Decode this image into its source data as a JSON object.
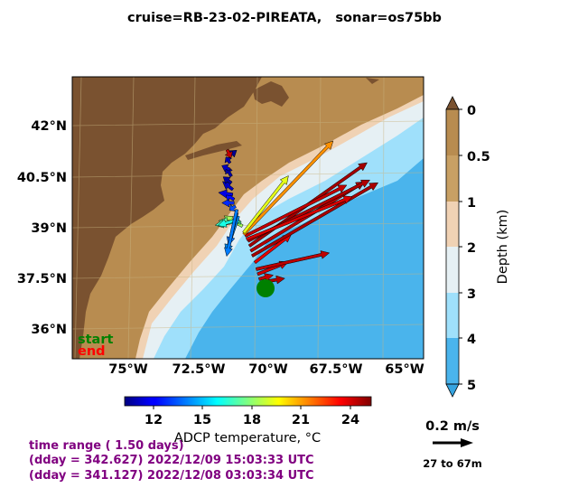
{
  "title": "cruise=RB-23-02-PIREATA,   sonar=os75bb",
  "map": {
    "lon_ticks": [
      "75°W",
      "72.5°W",
      "70°W",
      "67.5°W",
      "65°W"
    ],
    "lat_ticks": [
      "42°N",
      "40.5°N",
      "39°N",
      "37.5°N",
      "36°N"
    ],
    "legend": {
      "start": "start",
      "end": "end",
      "start_color": "#008000",
      "end_color": "#ff0000"
    },
    "colors": {
      "land": "#7a5230",
      "shelf": "#b88c50",
      "slope": "#f0d2b4",
      "deep1": "#e6f0f4",
      "deep2": "#9fe0fb",
      "deep3": "#4ab4ec",
      "deep4": "#36a4e0"
    }
  },
  "depth_colorbar": {
    "label": "Depth (km)",
    "ticks": [
      "0",
      "0.5",
      "1",
      "2",
      "3",
      "4",
      "5"
    ],
    "colors": [
      "#b88c50",
      "#c8a064",
      "#f0d2b4",
      "#e6f0f4",
      "#9fe0fb",
      "#4ab4ec"
    ]
  },
  "temp_colorbar": {
    "label": "ADCP temperature, °C",
    "ticks": [
      "12",
      "15",
      "18",
      "21",
      "24"
    ],
    "min": 10.5,
    "max": 25.5,
    "colormap": "jet"
  },
  "info": {
    "line1": "time range ( 1.50 days)",
    "line2": "(dday = 342.627) 2022/12/09 15:03:33 UTC",
    "line3": "(dday = 341.127) 2022/12/08 03:03:34 UTC"
  },
  "scale": {
    "label": "0.2 m/s",
    "depth_range": "27 to 67m"
  },
  "chart_data": {
    "type": "vector-map",
    "x_range_lon": [
      -77,
      -64.3
    ],
    "y_range_lat": [
      34.9,
      43.4
    ],
    "vectors": [
      {
        "lon": -70.2,
        "lat": 37.2,
        "u": 0.12,
        "v": 0.02,
        "temp": 24.8
      },
      {
        "lon": -70.25,
        "lat": 37.3,
        "u": 0.07,
        "v": 0.02,
        "temp": 24.5
      },
      {
        "lon": -70.3,
        "lat": 37.45,
        "u": 0.15,
        "v": 0.06,
        "temp": 24.3
      },
      {
        "lon": -70.35,
        "lat": 37.6,
        "u": 0.36,
        "v": 0.08,
        "temp": 24.6
      },
      {
        "lon": -70.4,
        "lat": 37.8,
        "u": 0.18,
        "v": 0.14,
        "temp": 24.0
      },
      {
        "lon": -70.5,
        "lat": 38.0,
        "u": 0.62,
        "v": 0.36,
        "temp": 24.9
      },
      {
        "lon": -70.55,
        "lat": 38.15,
        "u": 0.56,
        "v": 0.34,
        "temp": 24.7
      },
      {
        "lon": -70.6,
        "lat": 38.3,
        "u": 0.58,
        "v": 0.41,
        "temp": 25.0
      },
      {
        "lon": -70.65,
        "lat": 38.45,
        "u": 0.6,
        "v": 0.3,
        "temp": 24.8
      },
      {
        "lon": -70.7,
        "lat": 38.5,
        "u": 0.52,
        "v": 0.21,
        "temp": 24.2
      },
      {
        "lon": -70.75,
        "lat": 38.6,
        "u": 0.5,
        "v": 0.25,
        "temp": 24.5
      },
      {
        "lon": -70.8,
        "lat": 38.65,
        "u": 0.44,
        "v": 0.46,
        "temp": 21.5
      },
      {
        "lon": -70.8,
        "lat": 38.7,
        "u": 0.22,
        "v": 0.28,
        "temp": 19.5
      },
      {
        "lon": -70.85,
        "lat": 38.9,
        "u": -0.09,
        "v": 0.05,
        "temp": 18.5
      },
      {
        "lon": -70.9,
        "lat": 39.0,
        "u": -0.11,
        "v": 0.01,
        "temp": 17.5
      },
      {
        "lon": -70.95,
        "lat": 39.05,
        "u": -0.12,
        "v": -0.02,
        "temp": 17.0
      },
      {
        "lon": -71.0,
        "lat": 39.1,
        "u": -0.1,
        "v": -0.03,
        "temp": 16.5
      },
      {
        "lon": -71.0,
        "lat": 39.2,
        "u": -0.06,
        "v": -0.18,
        "temp": 14.5
      },
      {
        "lon": -71.05,
        "lat": 39.3,
        "u": -0.04,
        "v": -0.16,
        "temp": 14.0
      },
      {
        "lon": -71.05,
        "lat": 39.4,
        "u": -0.05,
        "v": -0.23,
        "temp": 14.2
      },
      {
        "lon": -71.1,
        "lat": 39.5,
        "u": -0.03,
        "v": -0.02,
        "temp": 13.5
      },
      {
        "lon": -71.15,
        "lat": 39.6,
        "u": -0.06,
        "v": 0.0,
        "temp": 13.0
      },
      {
        "lon": -71.15,
        "lat": 39.7,
        "u": -0.05,
        "v": 0.03,
        "temp": 12.5
      },
      {
        "lon": -71.2,
        "lat": 39.85,
        "u": -0.07,
        "v": 0.01,
        "temp": 12.0
      },
      {
        "lon": -71.2,
        "lat": 40.0,
        "u": -0.05,
        "v": 0.04,
        "temp": 11.5
      },
      {
        "lon": -71.25,
        "lat": 40.2,
        "u": -0.04,
        "v": 0.03,
        "temp": 11.0
      },
      {
        "lon": -71.25,
        "lat": 40.4,
        "u": -0.03,
        "v": 0.05,
        "temp": 11.0
      },
      {
        "lon": -71.3,
        "lat": 40.6,
        "u": -0.04,
        "v": 0.02,
        "temp": 11.5
      },
      {
        "lon": -71.3,
        "lat": 40.8,
        "u": -0.02,
        "v": 0.03,
        "temp": 11.2
      },
      {
        "lon": -71.35,
        "lat": 41.0,
        "u": 0.04,
        "v": 0.03,
        "temp": 10.8
      },
      {
        "lon": -71.4,
        "lat": 41.2,
        "u": 0.02,
        "v": -0.04,
        "temp": 24.5
      }
    ]
  }
}
